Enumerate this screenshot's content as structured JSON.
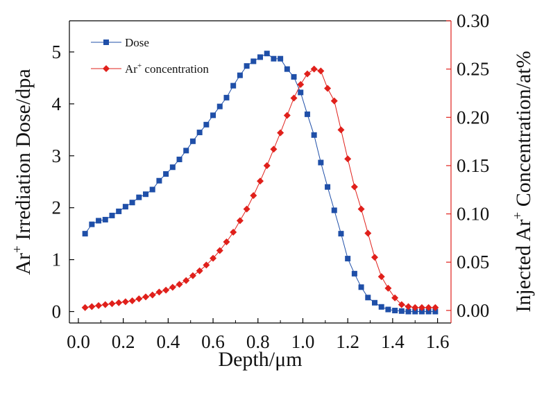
{
  "chart_data": {
    "type": "line",
    "title": "",
    "xlabel": "Depth/μm",
    "ylabel_left": {
      "base": "Ar",
      "sup": "+",
      "rest": " Irrediation Dose/dpa"
    },
    "ylabel_right": {
      "base": "Injected Ar",
      "sup": "+",
      "rest": " Concentration/at%"
    },
    "xlim": [
      -0.04,
      1.66
    ],
    "ylim_left": [
      -0.22,
      5.6
    ],
    "ylim_right": [
      -0.013,
      0.3
    ],
    "x_ticks": [
      "0.0",
      "0.2",
      "0.4",
      "0.6",
      "0.8",
      "1.0",
      "1.2",
      "1.4",
      "1.6"
    ],
    "y_left_ticks": [
      "0",
      "1",
      "2",
      "3",
      "4",
      "5"
    ],
    "y_right_ticks": [
      "0.00",
      "0.05",
      "0.10",
      "0.15",
      "0.20",
      "0.25",
      "0.30"
    ],
    "grid": false,
    "legend_position": "top-left",
    "series": [
      {
        "name": "Dose",
        "axis": "left",
        "color": "#1f4fa8",
        "marker": "square",
        "x": [
          0.03,
          0.06,
          0.09,
          0.12,
          0.15,
          0.18,
          0.21,
          0.24,
          0.27,
          0.3,
          0.33,
          0.36,
          0.39,
          0.42,
          0.45,
          0.48,
          0.51,
          0.54,
          0.57,
          0.6,
          0.63,
          0.66,
          0.69,
          0.72,
          0.75,
          0.78,
          0.81,
          0.84,
          0.87,
          0.9,
          0.93,
          0.96,
          0.99,
          1.02,
          1.05,
          1.08,
          1.11,
          1.14,
          1.17,
          1.2,
          1.23,
          1.26,
          1.29,
          1.32,
          1.35,
          1.38,
          1.41,
          1.44,
          1.47,
          1.5,
          1.53,
          1.56,
          1.59
        ],
        "y": [
          1.5,
          1.68,
          1.75,
          1.77,
          1.85,
          1.93,
          2.02,
          2.1,
          2.2,
          2.26,
          2.35,
          2.52,
          2.65,
          2.78,
          2.93,
          3.1,
          3.28,
          3.45,
          3.6,
          3.78,
          3.95,
          4.12,
          4.35,
          4.55,
          4.73,
          4.82,
          4.9,
          4.97,
          4.87,
          4.87,
          4.67,
          4.52,
          4.22,
          3.8,
          3.4,
          2.87,
          2.4,
          1.95,
          1.5,
          1.02,
          0.73,
          0.47,
          0.27,
          0.17,
          0.09,
          0.04,
          0.02,
          0.01,
          0.0,
          0.0,
          0.0,
          0.0,
          0.0
        ]
      },
      {
        "name": "Ar+ concentration",
        "name_parts": {
          "base": "Ar",
          "sup": "+",
          "rest": " concentration"
        },
        "axis": "right",
        "color": "#e0201b",
        "marker": "diamond",
        "x": [
          0.03,
          0.06,
          0.09,
          0.12,
          0.15,
          0.18,
          0.21,
          0.24,
          0.27,
          0.3,
          0.33,
          0.36,
          0.39,
          0.42,
          0.45,
          0.48,
          0.51,
          0.54,
          0.57,
          0.6,
          0.63,
          0.66,
          0.69,
          0.72,
          0.75,
          0.78,
          0.81,
          0.84,
          0.87,
          0.9,
          0.93,
          0.96,
          0.99,
          1.02,
          1.05,
          1.08,
          1.11,
          1.14,
          1.17,
          1.2,
          1.23,
          1.26,
          1.29,
          1.32,
          1.35,
          1.38,
          1.41,
          1.44,
          1.47,
          1.5,
          1.53,
          1.56,
          1.59
        ],
        "y": [
          0.003,
          0.004,
          0.005,
          0.006,
          0.007,
          0.008,
          0.009,
          0.01,
          0.012,
          0.014,
          0.016,
          0.019,
          0.021,
          0.024,
          0.027,
          0.031,
          0.036,
          0.041,
          0.047,
          0.054,
          0.062,
          0.071,
          0.081,
          0.093,
          0.105,
          0.119,
          0.134,
          0.15,
          0.167,
          0.184,
          0.202,
          0.22,
          0.234,
          0.245,
          0.25,
          0.248,
          0.23,
          0.217,
          0.187,
          0.157,
          0.128,
          0.105,
          0.08,
          0.055,
          0.035,
          0.023,
          0.013,
          0.006,
          0.004,
          0.003,
          0.003,
          0.003,
          0.003
        ]
      }
    ]
  }
}
